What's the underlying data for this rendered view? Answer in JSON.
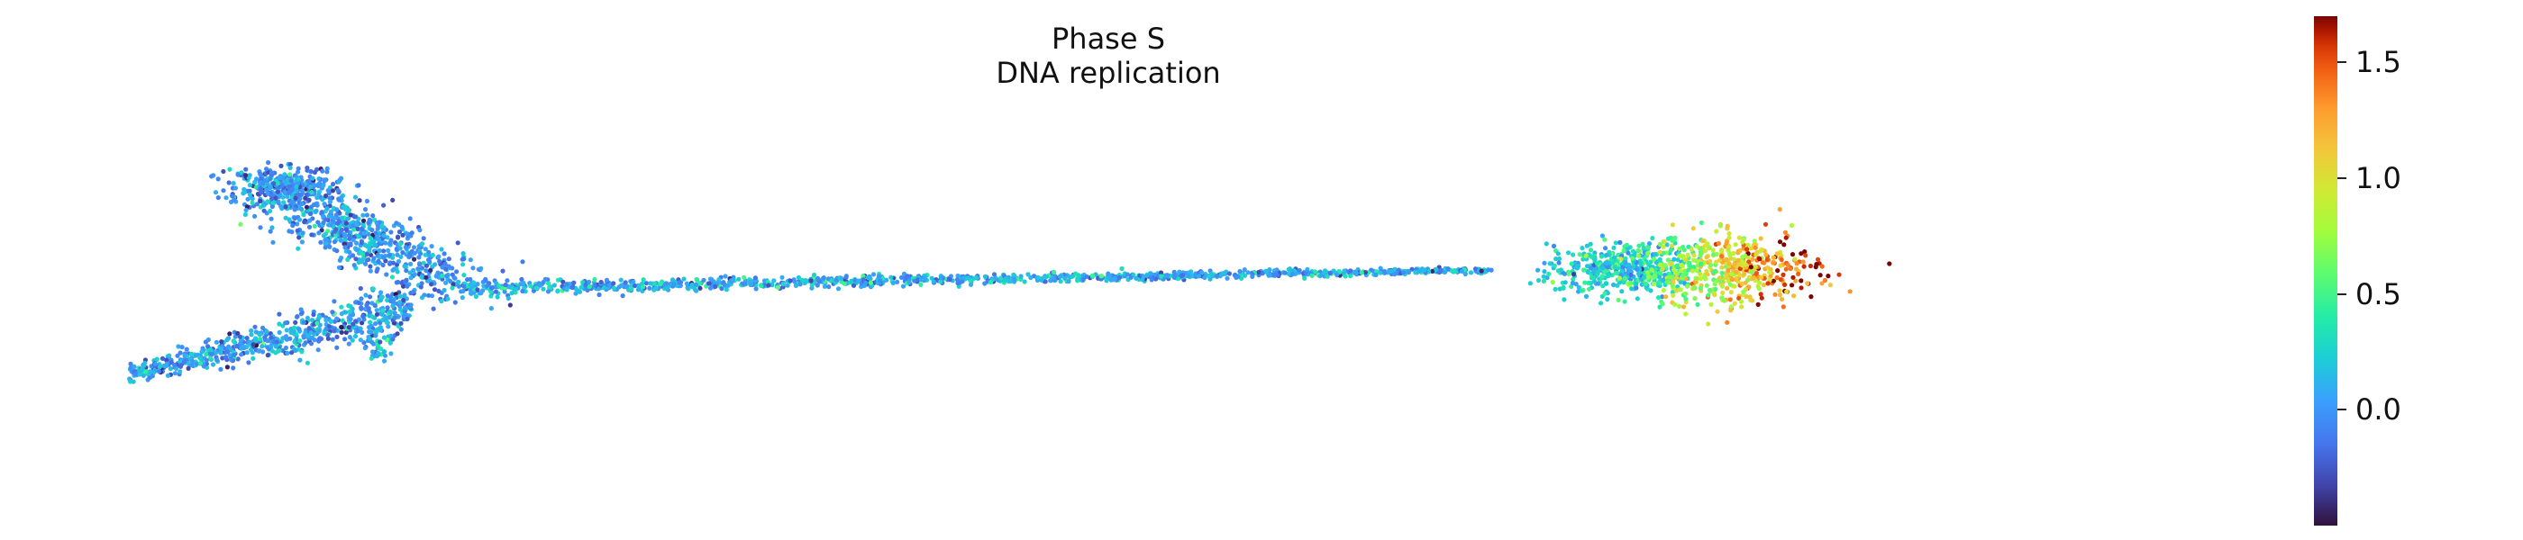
{
  "chart_data": {
    "type": "scatter",
    "title": "Phase S",
    "subtitle": "DNA replication",
    "xlabel": "",
    "ylabel": "",
    "grid": false,
    "axes_visible": false,
    "colormap": "turbo",
    "colorbar": {
      "orientation": "vertical",
      "placement": "right",
      "range": [
        -0.5,
        1.7
      ],
      "ticks": [
        0.0,
        0.5,
        1.0,
        1.5
      ],
      "tick_labels": [
        "0.0",
        "0.5",
        "1.0",
        "1.5"
      ]
    },
    "xlim": [
      0,
      100
    ],
    "ylim": [
      0,
      100
    ],
    "clusters": [
      {
        "region": "lower-left arm",
        "center": [
          7.5,
          28
        ],
        "spread": [
          3.5,
          3
        ],
        "count": 650,
        "mean_value": 0.02
      },
      {
        "region": "upper-left blob",
        "center": [
          9.3,
          78
        ],
        "spread": [
          1.2,
          2.5
        ],
        "count": 220,
        "mean_value": -0.05
      },
      {
        "region": "upper-left fan",
        "center": [
          13.5,
          60
        ],
        "spread": [
          4,
          12
        ],
        "count": 750,
        "mean_value": 0.0
      },
      {
        "region": "small bottom spur",
        "center": [
          13.9,
          26
        ],
        "spread": [
          0.4,
          3
        ],
        "count": 40,
        "mean_value": 0.12
      },
      {
        "region": "trajectory stem",
        "center": [
          45,
          48
        ],
        "spread": [
          22,
          1
        ],
        "count": 1100,
        "mean_value": 0.08
      },
      {
        "region": "right cluster core",
        "center": [
          75.5,
          50
        ],
        "spread": [
          1.8,
          4
        ],
        "count": 420,
        "mean_value": 0.25
      },
      {
        "region": "right cluster tip",
        "center": [
          80.5,
          50
        ],
        "spread": [
          2.3,
          6
        ],
        "count": 520,
        "mean_value": 0.95
      }
    ]
  }
}
